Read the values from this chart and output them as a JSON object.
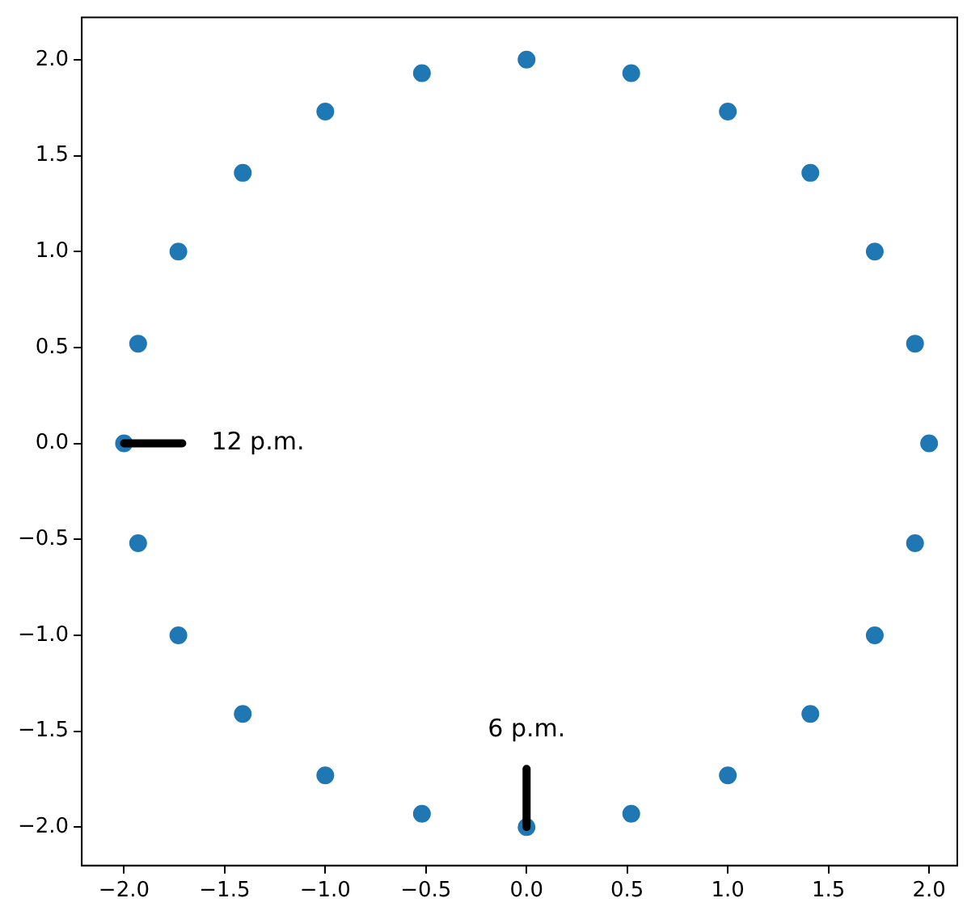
{
  "chart_data": {
    "type": "scatter",
    "marker": "circle",
    "x": [
      2,
      1.93,
      1.73,
      1.41,
      1,
      0.52,
      0,
      -0.52,
      -1,
      -1.41,
      -1.73,
      -1.93,
      -2,
      -1.93,
      -1.73,
      -1.41,
      -1,
      -0.52,
      0,
      0.52,
      1,
      1.41,
      1.73,
      1.93
    ],
    "series": [
      {
        "color": "#1f77b4",
        "values": [
          0,
          0.52,
          1,
          1.41,
          1.73,
          1.93,
          2,
          1.93,
          1.73,
          1.41,
          1,
          0.52,
          0,
          -0.52,
          -1,
          -1.41,
          -1.73,
          -1.93,
          -2,
          -1.93,
          -1.73,
          -1.41,
          -1,
          -0.52
        ]
      }
    ],
    "xlim": [
      -2.21,
      2.14
    ],
    "ylim": [
      -2.2,
      2.22
    ],
    "xticks": [
      {
        "value": -2,
        "label": "−2.0"
      },
      {
        "value": -1.5,
        "label": "−1.5"
      },
      {
        "value": -1,
        "label": "−1.0"
      },
      {
        "value": -0.5,
        "label": "−0.5"
      },
      {
        "value": 0,
        "label": "0.0"
      },
      {
        "value": 0.5,
        "label": "0.5"
      },
      {
        "value": 1,
        "label": "1.0"
      },
      {
        "value": 1.5,
        "label": "1.5"
      },
      {
        "value": 2,
        "label": "2.0"
      }
    ],
    "yticks": [
      {
        "value": -2,
        "label": "−2.0"
      },
      {
        "value": -1.5,
        "label": "−1.5"
      },
      {
        "value": -1,
        "label": "−1.0"
      },
      {
        "value": -0.5,
        "label": "−0.5"
      },
      {
        "value": 0,
        "label": "0.0"
      },
      {
        "value": 0.5,
        "label": "0.5"
      },
      {
        "value": 1,
        "label": "1.0"
      },
      {
        "value": 1.5,
        "label": "1.5"
      },
      {
        "value": 2,
        "label": "2.0"
      }
    ],
    "annotations": [
      {
        "text": "12 p.m.",
        "x": -2,
        "y": 0
      },
      {
        "text": "6 p.m.",
        "x": 0,
        "y": -2
      }
    ]
  }
}
